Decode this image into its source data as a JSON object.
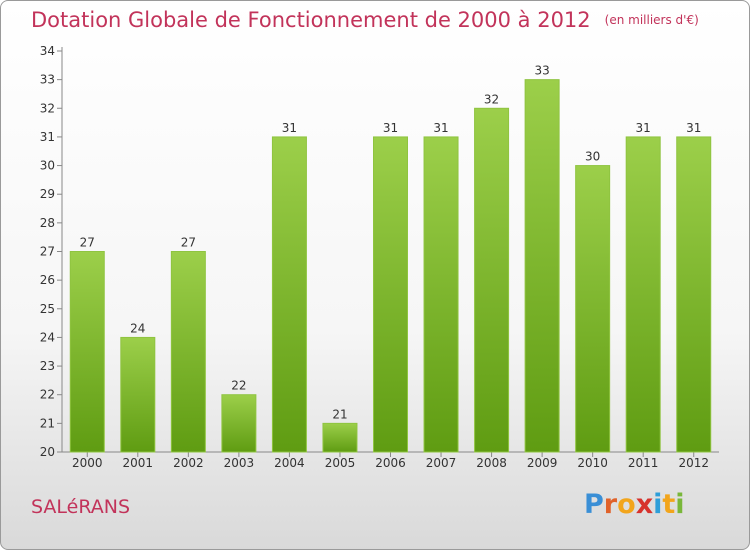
{
  "title": "Dotation Globale de Fonctionnement de 2000 à 2012",
  "subtitle": "(en milliers d'€)",
  "commune": "SALéRANS",
  "logo": {
    "text": "Proxiti",
    "letter_colors": [
      "#3a8fd6",
      "#e0622a",
      "#f2a51c",
      "#d7322c",
      "#2f9fd9",
      "#f2a51c",
      "#79b73a"
    ]
  },
  "colors": {
    "bar_light": "#9ccf4a",
    "bar_dark": "#5f9c12",
    "title": "#c2335a"
  },
  "chart_data": {
    "type": "bar",
    "categories": [
      "2000",
      "2001",
      "2002",
      "2003",
      "2004",
      "2005",
      "2006",
      "2007",
      "2008",
      "2009",
      "2010",
      "2011",
      "2012"
    ],
    "values": [
      27,
      24,
      27,
      22,
      31,
      21,
      31,
      31,
      32,
      33,
      30,
      31,
      31
    ],
    "ylim": [
      20,
      34
    ],
    "yticks": [
      20,
      21,
      22,
      23,
      24,
      25,
      26,
      27,
      28,
      29,
      30,
      31,
      32,
      33,
      34
    ],
    "grid": false,
    "legend": "none"
  }
}
